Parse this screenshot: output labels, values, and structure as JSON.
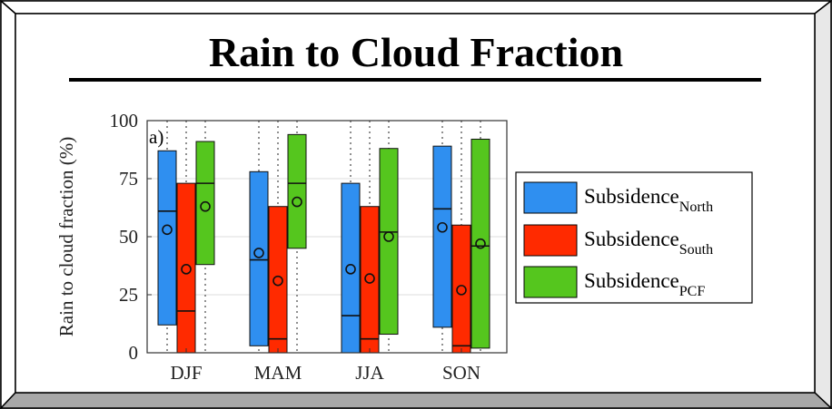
{
  "title": "Rain to Cloud Fraction",
  "colors": {
    "north": "#2f8ff0",
    "south": "#ff2a00",
    "pcf": "#55c61e"
  },
  "chart_data": {
    "type": "bar",
    "panel_label": "a)",
    "ylabel": "Rain to cloud fraction (%)",
    "ylim": [
      0,
      100
    ],
    "yticks": [
      0,
      25,
      50,
      75,
      100
    ],
    "categories": [
      "DJF",
      "MAM",
      "JJA",
      "SON"
    ],
    "grid": "horizontal",
    "legend_position": "right",
    "series": [
      {
        "name": "Subsidence",
        "sub": "North",
        "low": [
          12,
          3,
          0,
          11
        ],
        "median": [
          61,
          40,
          16,
          62
        ],
        "high": [
          87,
          78,
          73,
          89
        ],
        "mean": [
          53,
          43,
          36,
          54
        ]
      },
      {
        "name": "Subsidence",
        "sub": "South",
        "low": [
          0,
          0,
          0,
          0
        ],
        "median": [
          18,
          6,
          6,
          3
        ],
        "high": [
          73,
          63,
          63,
          55
        ],
        "mean": [
          36,
          31,
          32,
          27
        ]
      },
      {
        "name": "Subsidence",
        "sub": "PCF",
        "low": [
          38,
          45,
          8,
          2
        ],
        "median": [
          73,
          73,
          52,
          46
        ],
        "high": [
          91,
          94,
          88,
          92
        ],
        "mean": [
          63,
          65,
          50,
          47
        ]
      }
    ]
  }
}
